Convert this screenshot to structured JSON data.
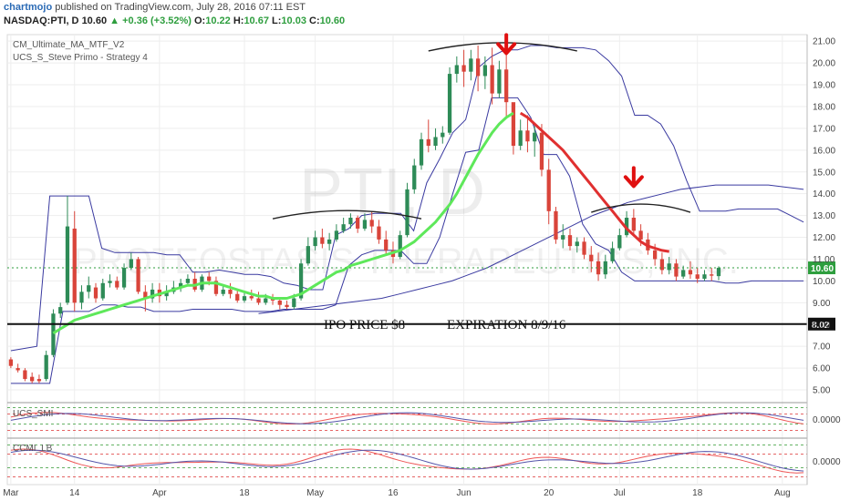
{
  "header": {
    "author": "chartmojo",
    "published_text": "published on TradingView.com, July 28, 2016 07:11 EST",
    "symbol_line": "NASDAQ:PTI, D",
    "last": "10.60",
    "change": "▲ +0.36 (+3.52%)",
    "o_label": "O:",
    "o": "10.22",
    "h_label": "H:",
    "h": "10.67",
    "l_label": "L:",
    "l": "10.03",
    "c_label": "C:",
    "c": "10.60"
  },
  "indicators": {
    "ind1": "CM_Ultimate_MA_MTF_V2",
    "ind2": "UCS_S_Steve Primo - Strategy 4",
    "pane1_label": "UCS_SMI",
    "pane2_label": "CCMI_LB",
    "pane1_value": "0.0000",
    "pane2_value": "0.0000"
  },
  "watermark": {
    "ticker": "PTI, D",
    "name": "PROTEOSTASIS THERAPEUTICS, INC."
  },
  "annotations": {
    "ipo": "IPO PRICE $8",
    "expiration": "EXPIRATION 8/9/16",
    "ipo_level": "8.02",
    "last_price": "10.60"
  },
  "colors": {
    "up": "#2e8b57",
    "down": "#d9443a",
    "ma_green": "#5ee85a",
    "ma_red": "#e03030",
    "band": "#3a3aa0",
    "arrow": "#e01010"
  },
  "chart_data": {
    "type": "candlestick",
    "title": "",
    "y_ticks": [
      5,
      6,
      7,
      8,
      9,
      10,
      11,
      12,
      13,
      14,
      15,
      16,
      17,
      18,
      19,
      20,
      21
    ],
    "y_tick_labels": [
      "5.00",
      "6.00",
      "7.00",
      "8.00",
      "9.00",
      "10.00",
      "11.00",
      "12.00",
      "13.00",
      "14.00",
      "15.00",
      "16.00",
      "17.00",
      "18.00",
      "19.00",
      "20.00",
      "21.00"
    ],
    "ylim": [
      4.5,
      21.3
    ],
    "x_tick_labels": [
      "Mar",
      "14",
      "Apr",
      "18",
      "May",
      "16",
      "Jun",
      "20",
      "Jul",
      "18",
      "Aug"
    ],
    "x_tick_index": [
      0,
      9,
      21,
      33,
      43,
      54,
      64,
      76,
      86,
      97,
      109
    ],
    "x_count": 113,
    "candles": [
      [
        6.4,
        6.5,
        6.1,
        6.0
      ],
      [
        6.0,
        6.2,
        5.9,
        5.8
      ],
      [
        5.9,
        6.0,
        5.5,
        5.4
      ],
      [
        5.6,
        5.8,
        5.4,
        5.3
      ],
      [
        5.5,
        5.7,
        5.4,
        5.3
      ],
      [
        5.5,
        6.8,
        6.6,
        5.4
      ],
      [
        6.6,
        8.7,
        8.5,
        6.5
      ],
      [
        8.5,
        9.0,
        8.8,
        8.3
      ],
      [
        9.0,
        13.9,
        12.5,
        8.9
      ],
      [
        12.4,
        13.2,
        9.0,
        8.6
      ],
      [
        9.0,
        9.8,
        9.5,
        8.7
      ],
      [
        9.5,
        10.2,
        9.8,
        9.2
      ],
      [
        9.7,
        9.9,
        9.2,
        9.0
      ],
      [
        9.2,
        10.1,
        9.9,
        9.1
      ],
      [
        9.9,
        10.3,
        10.0,
        9.7
      ],
      [
        10.0,
        10.2,
        9.7,
        9.6
      ],
      [
        9.7,
        10.8,
        10.6,
        9.6
      ],
      [
        10.6,
        11.3,
        11.0,
        10.5
      ],
      [
        11.0,
        11.1,
        9.5,
        9.4
      ],
      [
        9.5,
        9.8,
        9.2,
        8.6
      ],
      [
        9.2,
        9.9,
        9.6,
        9.0
      ],
      [
        9.6,
        9.9,
        9.3,
        9.0
      ],
      [
        9.3,
        9.8,
        9.5,
        9.1
      ],
      [
        9.5,
        10.0,
        9.7,
        9.4
      ],
      [
        9.7,
        10.1,
        9.9,
        9.5
      ],
      [
        9.9,
        10.3,
        10.1,
        9.8
      ],
      [
        10.1,
        10.4,
        9.6,
        9.5
      ],
      [
        9.6,
        10.3,
        10.2,
        9.5
      ],
      [
        10.2,
        10.4,
        10.0,
        9.8
      ],
      [
        10.0,
        10.2,
        9.4,
        9.3
      ],
      [
        9.4,
        9.8,
        9.6,
        9.3
      ],
      [
        9.6,
        9.9,
        9.4,
        9.2
      ],
      [
        9.4,
        9.6,
        9.1,
        9.0
      ],
      [
        9.1,
        9.5,
        9.3,
        9.0
      ],
      [
        9.3,
        9.6,
        9.2,
        9.1
      ],
      [
        9.2,
        9.5,
        9.0,
        8.9
      ],
      [
        9.0,
        9.4,
        9.2,
        8.9
      ],
      [
        9.2,
        9.4,
        9.1,
        8.9
      ],
      [
        9.1,
        9.2,
        8.9,
        8.7
      ],
      [
        8.9,
        9.1,
        8.8,
        8.7
      ],
      [
        8.8,
        9.4,
        9.2,
        8.7
      ],
      [
        9.2,
        11.0,
        10.8,
        9.1
      ],
      [
        10.8,
        12.0,
        11.6,
        10.7
      ],
      [
        11.6,
        12.3,
        12.0,
        11.4
      ],
      [
        12.0,
        12.4,
        11.7,
        11.5
      ],
      [
        11.7,
        12.2,
        11.9,
        11.4
      ],
      [
        11.9,
        12.6,
        12.3,
        11.8
      ],
      [
        12.3,
        12.9,
        12.6,
        12.2
      ],
      [
        12.6,
        13.1,
        12.9,
        12.4
      ],
      [
        12.9,
        13.0,
        12.4,
        12.2
      ],
      [
        12.4,
        13.1,
        12.8,
        12.3
      ],
      [
        12.8,
        13.2,
        12.5,
        12.2
      ],
      [
        12.5,
        12.8,
        11.9,
        11.7
      ],
      [
        11.9,
        12.3,
        11.4,
        11.2
      ],
      [
        11.4,
        11.8,
        11.1,
        10.8
      ],
      [
        11.1,
        12.3,
        12.1,
        11.0
      ],
      [
        12.1,
        14.5,
        14.2,
        12.0
      ],
      [
        14.2,
        15.6,
        15.3,
        14.0
      ],
      [
        15.3,
        16.8,
        16.5,
        15.1
      ],
      [
        16.5,
        17.4,
        16.2,
        15.9
      ],
      [
        16.2,
        17.0,
        16.6,
        16.0
      ],
      [
        16.6,
        17.1,
        16.8,
        16.3
      ],
      [
        16.8,
        19.8,
        19.5,
        16.7
      ],
      [
        19.5,
        20.3,
        19.9,
        19.1
      ],
      [
        19.9,
        20.6,
        19.6,
        18.9
      ],
      [
        19.6,
        20.6,
        20.2,
        19.2
      ],
      [
        20.2,
        20.8,
        19.4,
        18.7
      ],
      [
        19.4,
        20.3,
        19.9,
        18.8
      ],
      [
        19.9,
        20.7,
        18.6,
        18.1
      ],
      [
        18.6,
        20.1,
        19.7,
        18.4
      ],
      [
        19.7,
        20.7,
        18.2,
        17.5
      ],
      [
        18.2,
        17.8,
        16.2,
        15.8
      ],
      [
        16.2,
        17.4,
        16.9,
        16.0
      ],
      [
        16.9,
        17.6,
        16.4,
        15.9
      ],
      [
        16.4,
        17.1,
        16.8,
        15.7
      ],
      [
        16.8,
        17.2,
        15.1,
        14.8
      ],
      [
        15.1,
        15.6,
        13.2,
        12.6
      ],
      [
        13.2,
        13.4,
        11.9,
        11.7
      ],
      [
        11.9,
        12.6,
        12.1,
        11.5
      ],
      [
        12.1,
        12.4,
        11.6,
        11.4
      ],
      [
        11.6,
        12.0,
        11.8,
        11.3
      ],
      [
        11.8,
        12.0,
        11.2,
        11.0
      ],
      [
        11.2,
        11.6,
        10.9,
        10.4
      ],
      [
        10.9,
        11.3,
        10.3,
        10.0
      ],
      [
        10.3,
        11.2,
        10.9,
        10.1
      ],
      [
        10.9,
        11.8,
        11.5,
        10.8
      ],
      [
        11.5,
        12.4,
        12.1,
        11.4
      ],
      [
        12.1,
        13.2,
        12.9,
        12.0
      ],
      [
        12.9,
        13.3,
        12.3,
        12.1
      ],
      [
        12.3,
        12.6,
        11.9,
        11.6
      ],
      [
        11.9,
        12.2,
        11.4,
        11.2
      ],
      [
        11.4,
        11.7,
        11.0,
        10.7
      ],
      [
        11.0,
        11.3,
        10.5,
        10.3
      ],
      [
        10.5,
        11.1,
        10.8,
        10.3
      ],
      [
        10.8,
        11.0,
        10.2,
        10.0
      ],
      [
        10.2,
        10.7,
        10.5,
        10.1
      ],
      [
        10.5,
        10.9,
        10.3,
        10.1
      ],
      [
        10.3,
        10.6,
        10.1,
        9.9
      ],
      [
        10.1,
        10.5,
        10.3,
        10.0
      ],
      [
        10.3,
        10.6,
        10.24,
        10.0
      ],
      [
        10.22,
        10.67,
        10.6,
        10.03
      ]
    ],
    "ma_green_start": 6,
    "ma_green": [
      7.6,
      7.8,
      8.0,
      8.2,
      8.3,
      8.4,
      8.5,
      8.6,
      8.7,
      8.8,
      8.9,
      9.0,
      9.1,
      9.2,
      9.3,
      9.4,
      9.5,
      9.6,
      9.7,
      9.8,
      9.8,
      9.9,
      9.9,
      9.9,
      9.8,
      9.7,
      9.6,
      9.5,
      9.4,
      9.3,
      9.3,
      9.2,
      9.2,
      9.2,
      9.3,
      9.4,
      9.6,
      9.8,
      10.0,
      10.2,
      10.4,
      10.5,
      10.7,
      10.8,
      10.9,
      11.0,
      11.1,
      11.2,
      11.3,
      11.4,
      11.6,
      11.8,
      12.1,
      12.4,
      12.7,
      13.1,
      13.5,
      14.0,
      14.6,
      15.2,
      15.8,
      16.3,
      16.8,
      17.2,
      17.5,
      17.7
    ],
    "ma_red_start": 72,
    "ma_red": [
      17.7,
      17.5,
      17.2,
      16.9,
      16.6,
      16.3,
      16.0,
      15.6,
      15.2,
      14.8,
      14.4,
      14.0,
      13.6,
      13.2,
      12.8,
      12.4,
      12.1,
      11.8,
      11.6,
      11.5,
      11.4,
      11.35
    ],
    "band_upper": [
      6.8,
      6.9,
      7.0,
      13.9,
      13.9,
      13.9,
      13.9,
      11.5,
      11.3,
      11.3,
      11.3,
      11.3,
      11.2,
      11.2,
      10.4,
      10.4,
      10.5,
      10.4,
      10.3,
      10.3,
      10.2,
      9.9,
      9.8,
      9.6,
      9.6,
      12.1,
      12.4,
      13.0,
      13.1,
      13.1,
      13.1,
      12.3,
      14.5,
      15.6,
      16.8,
      17.4,
      19.8,
      20.3,
      20.6,
      20.6,
      20.8,
      20.8,
      20.7,
      20.7,
      20.7,
      20.6,
      20.1,
      19.4,
      17.6,
      17.6,
      17.2,
      16.2,
      14.6,
      13.2,
      13.2,
      13.2,
      13.3,
      13.3,
      13.3,
      13.3,
      13.0,
      12.7
    ],
    "band_lower": [
      5.3,
      5.3,
      5.3,
      5.3,
      8.6,
      8.6,
      8.6,
      8.9,
      8.9,
      8.8,
      8.8,
      8.6,
      8.6,
      8.6,
      8.7,
      8.7,
      8.7,
      8.7,
      8.6,
      8.6,
      8.6,
      8.7,
      8.7,
      8.7,
      8.7,
      8.9,
      10.7,
      11.2,
      11.4,
      11.4,
      11.4,
      10.8,
      10.8,
      12.0,
      14.0,
      15.9,
      16.0,
      18.4,
      18.4,
      18.4,
      17.5,
      15.8,
      15.8,
      14.8,
      12.6,
      11.7,
      11.4,
      10.4,
      10.0,
      10.0,
      10.0,
      10.0,
      10.0,
      10.0,
      10.0,
      9.9,
      9.9,
      10.0,
      10.0,
      10.0,
      10.0,
      10.0
    ],
    "long_ma": [
      8.5,
      8.6,
      8.7,
      8.8,
      8.9,
      9.0,
      9.1,
      9.2,
      9.4,
      9.6,
      9.8,
      10.0,
      10.3,
      10.6,
      11.0,
      11.4,
      11.8,
      12.2,
      12.6,
      13.0,
      13.3,
      13.6,
      13.8,
      14.0,
      14.2,
      14.3,
      14.4,
      14.4,
      14.4,
      14.4,
      14.3,
      14.2
    ],
    "tops": [
      {
        "x1": 37,
        "x2": 58,
        "y": 13.1
      },
      {
        "x1": 59,
        "x2": 80,
        "y": 20.8
      },
      {
        "x1": 82,
        "x2": 96,
        "y": 13.4
      }
    ],
    "arrows": [
      {
        "i": 70,
        "v": 21.2
      },
      {
        "i": 88,
        "v": 15.1
      }
    ]
  }
}
